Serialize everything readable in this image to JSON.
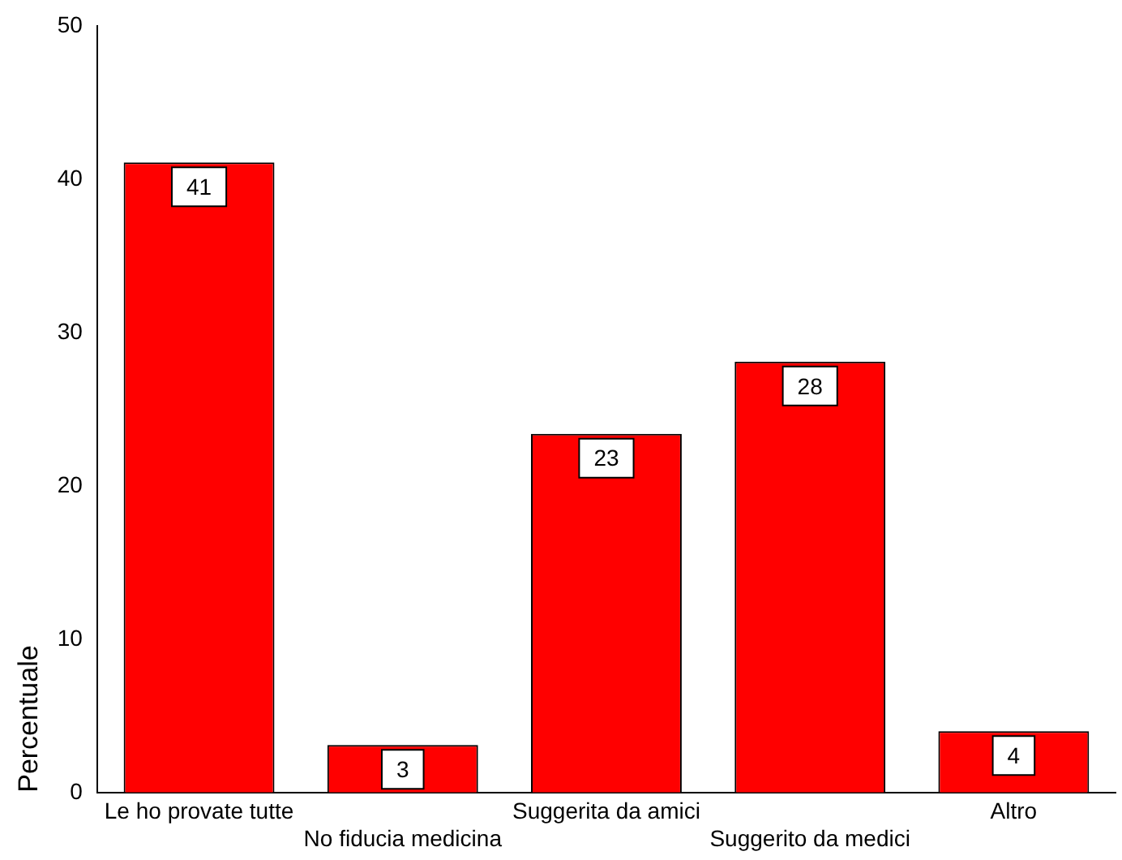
{
  "chart_data": {
    "type": "bar",
    "ylabel": "Percentuale",
    "categories": [
      "Le ho provate tutte",
      "No fiducia medicina",
      "Suggerita da amici",
      "Suggerito da medici",
      "Altro"
    ],
    "values": [
      41.1,
      3.1,
      23.4,
      28.1,
      4.0
    ],
    "value_labels": [
      "41",
      "3",
      "23",
      "28",
      "4"
    ],
    "color": "#ff0000",
    "ylim": [
      0,
      50
    ],
    "yticks": [
      0,
      10,
      20,
      30,
      40,
      50
    ],
    "grid": false,
    "legend": false
  }
}
